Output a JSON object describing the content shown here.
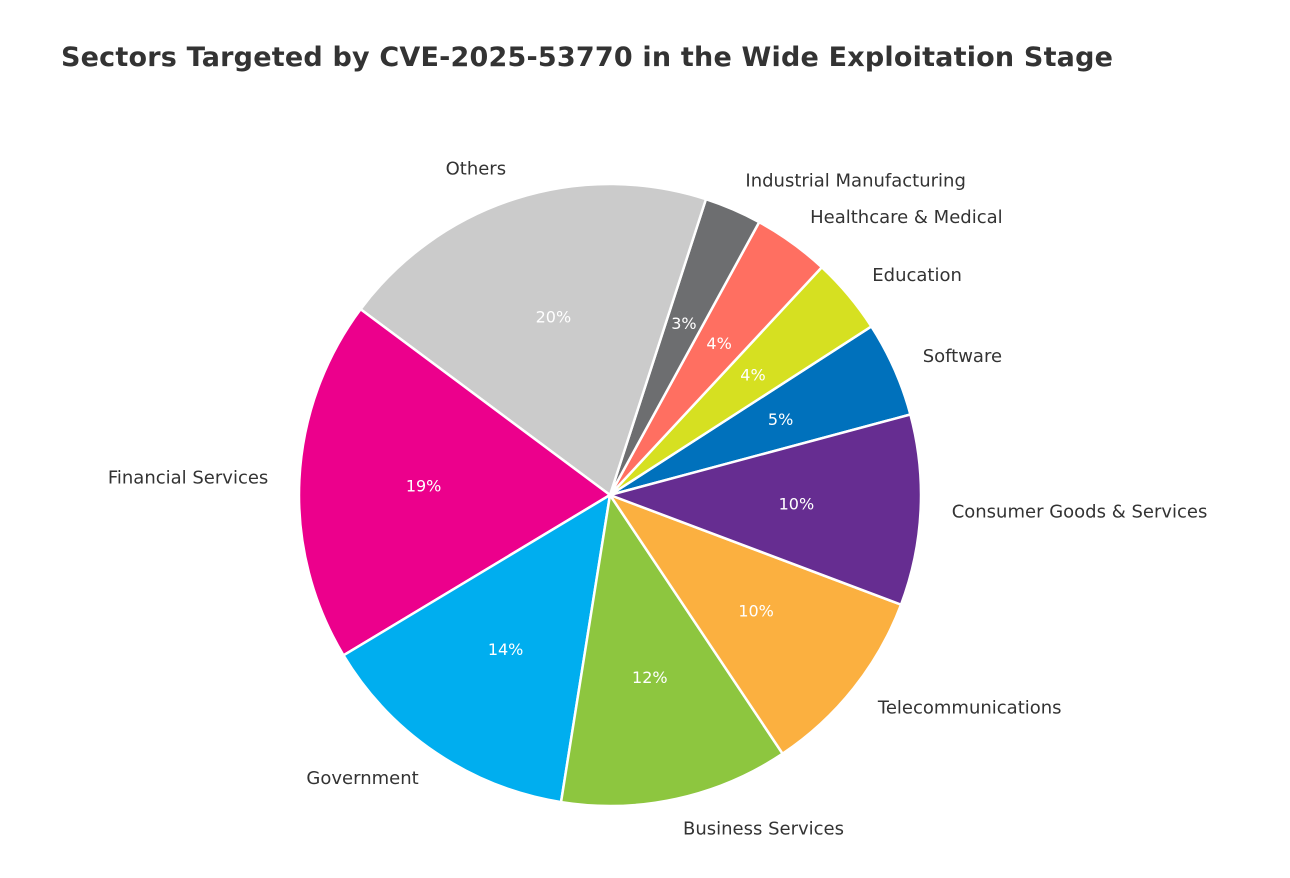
{
  "chart_data": {
    "type": "pie",
    "title": "Sectors Targeted by CVE-2025-53770 in the Wide Exploitation Stage",
    "slices": [
      {
        "label": "Software",
        "value": 5,
        "pct_label": "5%",
        "color": "#0071BC"
      },
      {
        "label": "Education",
        "value": 4,
        "pct_label": "4%",
        "color": "#D6E021"
      },
      {
        "label": "Healthcare & Medical",
        "value": 4,
        "pct_label": "4%",
        "color": "#FF6F61"
      },
      {
        "label": "Industrial Manufacturing",
        "value": 3,
        "pct_label": "3%",
        "color": "#6D6E70"
      },
      {
        "label": "Others",
        "value": 20,
        "pct_label": "20%",
        "color": "#CBCBCB"
      },
      {
        "label": "Financial Services",
        "value": 19,
        "pct_label": "19%",
        "color": "#EC008C"
      },
      {
        "label": "Government",
        "value": 14,
        "pct_label": "14%",
        "color": "#00AEEF"
      },
      {
        "label": "Business Services",
        "value": 12,
        "pct_label": "12%",
        "color": "#8DC63F"
      },
      {
        "label": "Telecommunications",
        "value": 10,
        "pct_label": "10%",
        "color": "#FBB040"
      },
      {
        "label": "Consumer Goods & Services",
        "value": 10,
        "pct_label": "10%",
        "color": "#662D91"
      }
    ],
    "start_angle_deg": 15,
    "direction": "counterclockwise",
    "legend": "none"
  }
}
